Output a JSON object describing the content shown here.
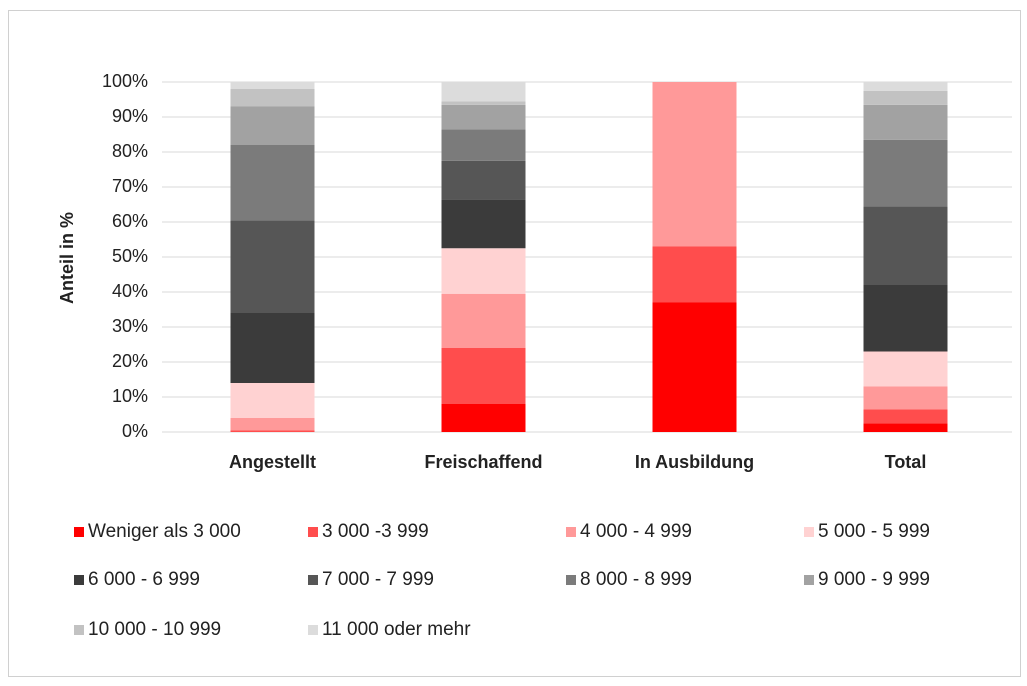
{
  "chart_data": {
    "type": "stacked_bar",
    "y_label": "Anteil in %",
    "categories": [
      "Angestellt",
      "Freischaffend",
      "In Ausbildung",
      "Total"
    ],
    "ylim": [
      0,
      100
    ],
    "yticks": [
      {
        "value": 0,
        "label": "0%"
      },
      {
        "value": 10,
        "label": "10%"
      },
      {
        "value": 20,
        "label": "20%"
      },
      {
        "value": 30,
        "label": "30%"
      },
      {
        "value": 40,
        "label": "40%"
      },
      {
        "value": 50,
        "label": "50%"
      },
      {
        "value": 60,
        "label": "60%"
      },
      {
        "value": 70,
        "label": "70%"
      },
      {
        "value": 80,
        "label": "80%"
      },
      {
        "value": 90,
        "label": "90%"
      },
      {
        "value": 100,
        "label": "100%"
      }
    ],
    "grid": true,
    "legend": "bottom",
    "series": [
      {
        "name": "Weniger als 3 000",
        "color": "#ff0000",
        "values": [
          0,
          8,
          37,
          2.5
        ]
      },
      {
        "name": "3 000 -3 999",
        "color": "#ff4d4d",
        "values": [
          0.5,
          16,
          16,
          4
        ]
      },
      {
        "name": "4 000 - 4 999",
        "color": "#ff9999",
        "values": [
          3.5,
          15.5,
          47,
          6.5
        ]
      },
      {
        "name": "5 000 - 5 999",
        "color": "#ffd2d2",
        "values": [
          10,
          13,
          0,
          10
        ]
      },
      {
        "name": "6 000 - 6 999",
        "color": "#3b3b3b",
        "values": [
          20,
          14,
          0,
          19
        ]
      },
      {
        "name": "7 000 - 7 999",
        "color": "#565656",
        "values": [
          26.5,
          11,
          0,
          22.5
        ]
      },
      {
        "name": "8 000 - 8 999",
        "color": "#7b7b7b",
        "values": [
          21.5,
          9,
          0,
          19
        ]
      },
      {
        "name": "9 000 - 9 999",
        "color": "#a2a2a2",
        "values": [
          11,
          7,
          0,
          10
        ]
      },
      {
        "name": "10 000 - 10 999",
        "color": "#c2c2c2",
        "values": [
          5,
          1,
          0,
          4
        ]
      },
      {
        "name": "11 000 oder mehr",
        "color": "#dcdcdc",
        "values": [
          2,
          5.5,
          0,
          2.5
        ]
      }
    ]
  }
}
